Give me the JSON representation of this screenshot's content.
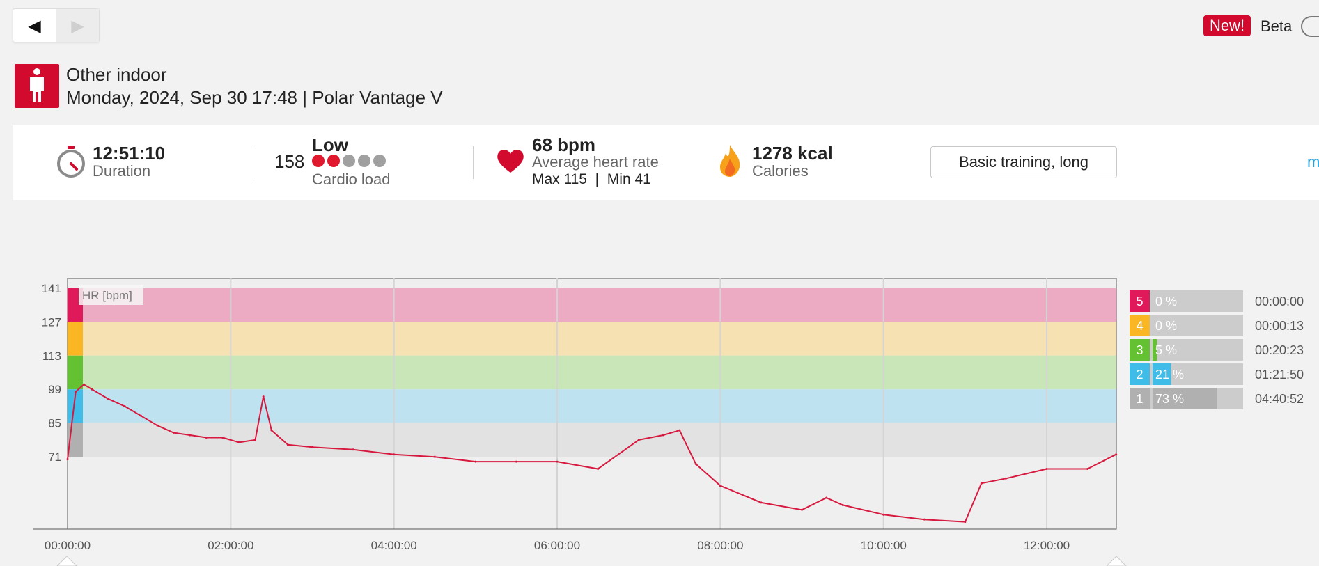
{
  "nav": {
    "back_glyph": "◀",
    "forward_glyph": "▶"
  },
  "beta": {
    "new_badge": "New!",
    "label": "Beta"
  },
  "session": {
    "sport_icon": "person-icon",
    "sport": "Other indoor",
    "datetime_device": "Monday, 2024, Sep 30 17:48 | Polar Vantage V"
  },
  "stats": {
    "duration": {
      "value": "12:51:10",
      "label": "Duration",
      "icon": "stopwatch-icon"
    },
    "cardio_load": {
      "value": "158",
      "level": "Low",
      "label": "Cardio load",
      "dots_filled": 2,
      "dots_total": 5,
      "dot_on_color": "#e0192e",
      "dot_off_color": "#a0a0a0"
    },
    "heart_rate": {
      "value": "68 bpm",
      "label": "Average heart rate",
      "max_min": "Max 115  |  Min 41",
      "icon": "heart-icon"
    },
    "calories": {
      "value": "1278 kcal",
      "label": "Calories",
      "icon": "flame-icon"
    },
    "training_benefit": "Basic training, long",
    "more_link": "m"
  },
  "colors": {
    "accent": "#d10a2e",
    "hr_line": "#d7193f"
  },
  "zones": [
    {
      "zone": "5",
      "percent_label": "0 %",
      "percent": 0,
      "time": "00:00:00",
      "color": "#e0195a",
      "band": "#ecaac3"
    },
    {
      "zone": "4",
      "percent_label": "0 %",
      "percent": 0,
      "time": "00:00:13",
      "color": "#fbb624",
      "band": "#f5e1b2"
    },
    {
      "zone": "3",
      "percent_label": "5 %",
      "percent": 5,
      "time": "00:20:23",
      "color": "#64c132",
      "band": "#c8e6b8"
    },
    {
      "zone": "2",
      "percent_label": "21 %",
      "percent": 21,
      "time": "01:21:50",
      "color": "#3fbde8",
      "band": "#bfe2f0"
    },
    {
      "zone": "1",
      "percent_label": "73 %",
      "percent": 73,
      "time": "04:40:52",
      "color": "#b0b0b0",
      "band": "#e2e2e2"
    }
  ],
  "chart_data": {
    "type": "line",
    "series_label": "HR [bpm]",
    "y_ticks": [
      "141",
      "127",
      "113",
      "99",
      "85",
      "71"
    ],
    "y_tick_values": [
      141,
      127,
      113,
      99,
      85,
      71
    ],
    "zone_bounds": [
      [
        127,
        141
      ],
      [
        113,
        127
      ],
      [
        99,
        113
      ],
      [
        85,
        99
      ],
      [
        71,
        85
      ]
    ],
    "ylim": [
      41,
      145
    ],
    "x_ticks": [
      "00:00:00",
      "02:00:00",
      "04:00:00",
      "06:00:00",
      "08:00:00",
      "10:00:00",
      "12:00:00"
    ],
    "x_tick_hours": [
      0,
      2,
      4,
      6,
      8,
      10,
      12
    ],
    "xlim_hours": [
      0,
      12.853
    ],
    "x_hours": [
      0,
      0.1,
      0.2,
      0.3,
      0.5,
      0.7,
      0.9,
      1.1,
      1.3,
      1.5,
      1.7,
      1.9,
      2.1,
      2.3,
      2.4,
      2.5,
      2.7,
      3.0,
      3.5,
      4.0,
      4.5,
      5.0,
      5.5,
      6.0,
      6.5,
      7.0,
      7.3,
      7.5,
      7.7,
      8.0,
      8.5,
      9.0,
      9.3,
      9.5,
      10.0,
      10.5,
      11.0,
      11.2,
      11.5,
      12.0,
      12.5,
      12.85
    ],
    "hr": [
      70,
      98,
      101,
      99,
      95,
      92,
      88,
      84,
      81,
      80,
      79,
      79,
      77,
      78,
      96,
      82,
      76,
      75,
      74,
      72,
      71,
      69,
      69,
      69,
      66,
      78,
      80,
      82,
      68,
      59,
      52,
      49,
      54,
      51,
      47,
      45,
      44,
      60,
      62,
      66,
      66,
      72
    ]
  }
}
